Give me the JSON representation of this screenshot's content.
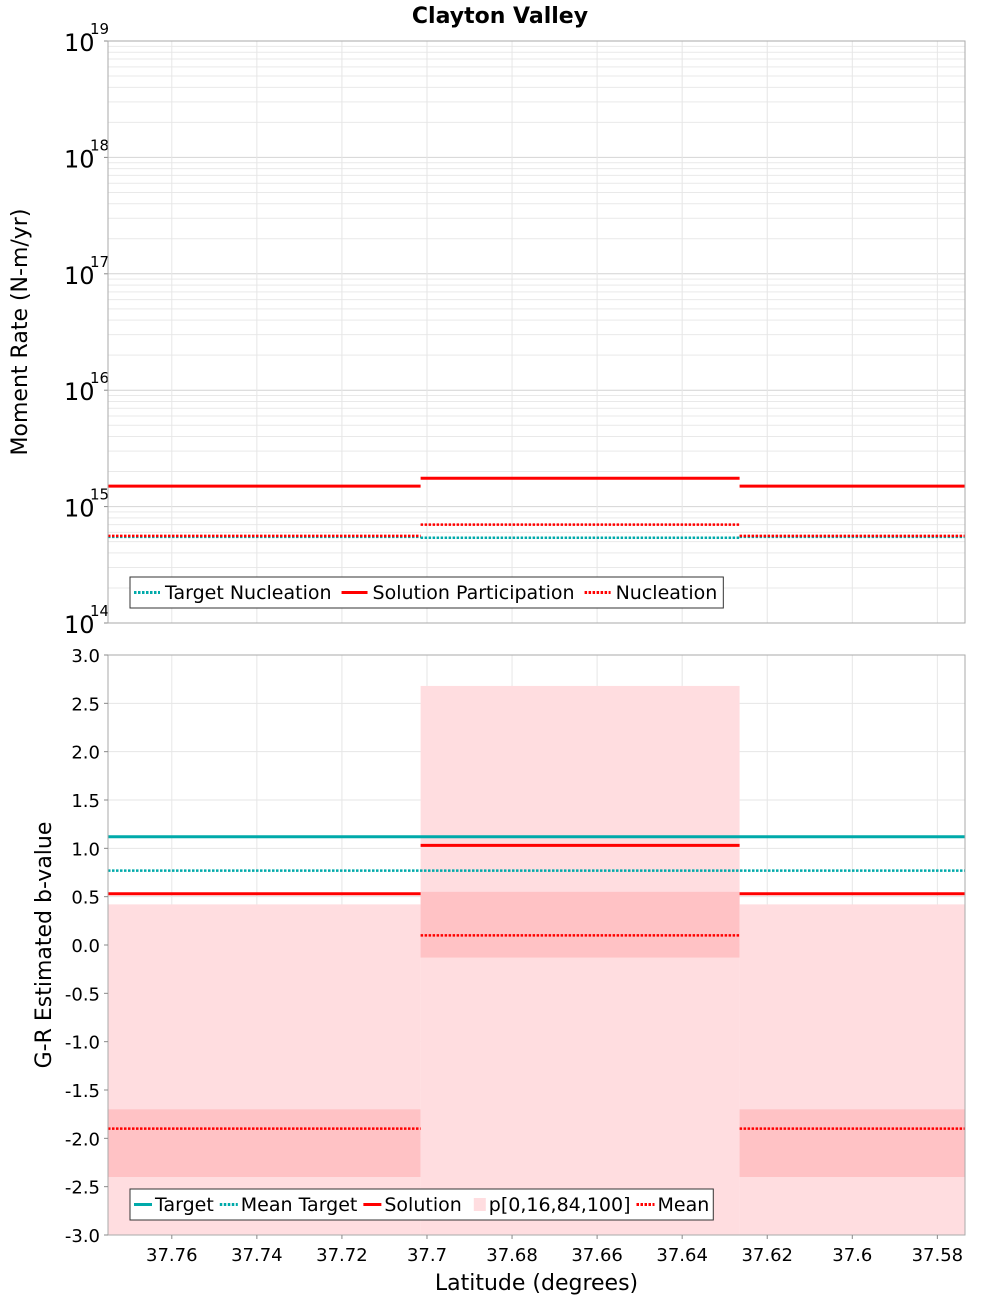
{
  "title": "Clayton Valley",
  "chart_data": [
    {
      "type": "line",
      "panel": "moment-rate",
      "title": "Clayton Valley",
      "ylabel": "Moment Rate (N-m/yr)",
      "yscale": "log",
      "ylim": [
        100000000000000.0,
        1e+19
      ],
      "ytick_labels": [
        {
          "base": "10",
          "exp": "14"
        },
        {
          "base": "10",
          "exp": "15"
        },
        {
          "base": "10",
          "exp": "16"
        },
        {
          "base": "10",
          "exp": "17"
        },
        {
          "base": "10",
          "exp": "18"
        },
        {
          "base": "10",
          "exp": "19"
        }
      ],
      "grid": true,
      "legend": {
        "placement": "bottom-left"
      },
      "series": [
        {
          "name": "Target Nucleation",
          "style": "dotted",
          "color": "#00aaaa",
          "segments": [
            {
              "x": [
                37.775,
                37.7015
              ],
              "y": 550000000000000.0
            },
            {
              "x": [
                37.7015,
                37.6265
              ],
              "y": 540000000000000.0
            },
            {
              "x": [
                37.6265,
                37.5735
              ],
              "y": 550000000000000.0
            }
          ]
        },
        {
          "name": "Solution Participation",
          "style": "solid",
          "color": "#ff0000",
          "segments": [
            {
              "x": [
                37.775,
                37.7015
              ],
              "y": 1500000000000000.0
            },
            {
              "x": [
                37.7015,
                37.6265
              ],
              "y": 1750000000000000.0
            },
            {
              "x": [
                37.6265,
                37.5735
              ],
              "y": 1500000000000000.0
            }
          ]
        },
        {
          "name": "Nucleation",
          "style": "dotted",
          "color": "#ff0000",
          "segments": [
            {
              "x": [
                37.775,
                37.7015
              ],
              "y": 560000000000000.0
            },
            {
              "x": [
                37.7015,
                37.6265
              ],
              "y": 700000000000000.0
            },
            {
              "x": [
                37.6265,
                37.5735
              ],
              "y": 560000000000000.0
            }
          ]
        }
      ]
    },
    {
      "type": "line",
      "panel": "b-value",
      "xlabel": "Latitude (degrees)",
      "ylabel": "G-R Estimated b-value",
      "xlim": [
        37.775,
        37.5735
      ],
      "x_reversed": true,
      "ylim": [
        -3.0,
        3.0
      ],
      "x_ticks": [
        37.76,
        37.74,
        37.72,
        37.7,
        37.68,
        37.66,
        37.64,
        37.62,
        37.6,
        37.58
      ],
      "x_tick_labels": [
        "37.76",
        "37.74",
        "37.72",
        "37.7",
        "37.68",
        "37.66",
        "37.64",
        "37.62",
        "37.6",
        "37.58"
      ],
      "y_ticks": [
        -3.0,
        -2.5,
        -2.0,
        -1.5,
        -1.0,
        -0.5,
        0.0,
        0.5,
        1.0,
        1.5,
        2.0,
        2.5,
        3.0
      ],
      "y_tick_labels": [
        "-3.0",
        "-2.5",
        "-2.0",
        "-1.5",
        "-1.0",
        "-0.5",
        "0.0",
        "0.5",
        "1.0",
        "1.5",
        "2.0",
        "2.5",
        "3.0"
      ],
      "grid": true,
      "legend": {
        "placement": "bottom-left"
      },
      "series": [
        {
          "name": "Target",
          "style": "solid",
          "color": "#00aaaa",
          "segments": [
            {
              "x": [
                37.775,
                37.5735
              ],
              "y": 1.12
            }
          ]
        },
        {
          "name": "Mean Target",
          "style": "dotted",
          "color": "#00aaaa",
          "segments": [
            {
              "x": [
                37.775,
                37.5735
              ],
              "y": 0.77
            }
          ]
        },
        {
          "name": "Solution",
          "style": "solid",
          "color": "#ff0000",
          "segments": [
            {
              "x": [
                37.775,
                37.7015
              ],
              "y": 0.53
            },
            {
              "x": [
                37.7015,
                37.6265
              ],
              "y": 1.03
            },
            {
              "x": [
                37.6265,
                37.5735
              ],
              "y": 0.53
            }
          ]
        },
        {
          "name": "p[0,16,84,100]",
          "style": "band",
          "color": "#ff0000",
          "bands": [
            {
              "x": [
                37.775,
                37.7015
              ],
              "p0": -3.0,
              "p16": -2.4,
              "p84": -1.7,
              "p100": 0.42
            },
            {
              "x": [
                37.7015,
                37.6265
              ],
              "p0": -3.0,
              "p16": -0.13,
              "p84": 0.55,
              "p100": 2.68
            },
            {
              "x": [
                37.6265,
                37.5735
              ],
              "p0": -3.0,
              "p16": -2.4,
              "p84": -1.7,
              "p100": 0.42
            }
          ]
        },
        {
          "name": "Mean",
          "style": "dotted",
          "color": "#ff0000",
          "segments": [
            {
              "x": [
                37.775,
                37.7015
              ],
              "y": -1.9
            },
            {
              "x": [
                37.7015,
                37.6265
              ],
              "y": 0.1
            },
            {
              "x": [
                37.6265,
                37.5735
              ],
              "y": -1.9
            }
          ]
        }
      ]
    }
  ]
}
